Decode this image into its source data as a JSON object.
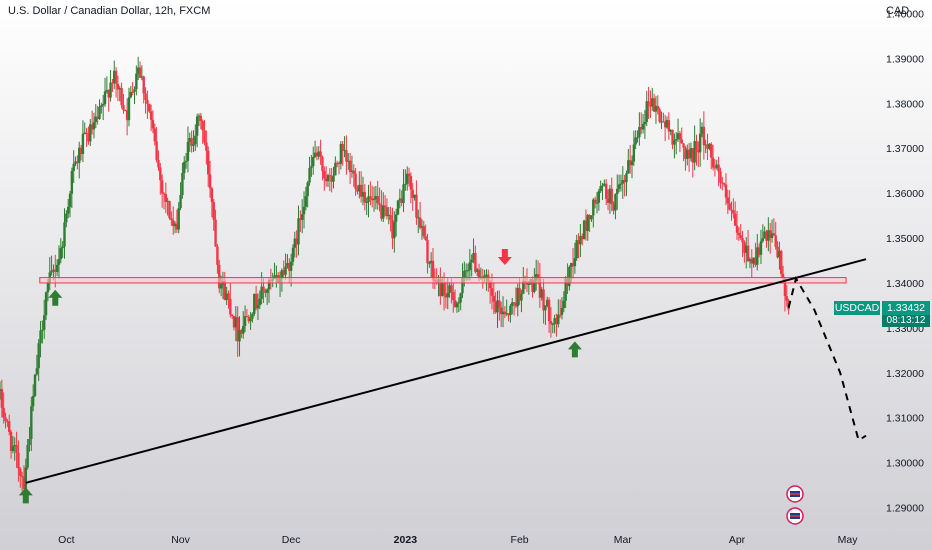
{
  "header": {
    "title": "U.S. Dollar / Canadian Dollar, 12h, FXCM",
    "currency": "CAD"
  },
  "price_tag": {
    "symbol": "USDCAD",
    "price": "1.33432",
    "countdown": "08:13:12"
  },
  "colors": {
    "up": "#2e7d32",
    "down": "#f23645",
    "zone_fill": "#f8c9cf",
    "zone_border": "#f23645",
    "tag_bg": "#089981",
    "background_top": "#ffffff",
    "background_bottom": "#cfcfd4"
  },
  "chart_data": {
    "type": "candlestick",
    "title": "U.S. Dollar / Canadian Dollar, 12h, FXCM",
    "y_axis": {
      "ticks": [
        1.29,
        1.3,
        1.31,
        1.32,
        1.33,
        1.34,
        1.35,
        1.36,
        1.37,
        1.38,
        1.39,
        1.4
      ],
      "tick_labels": [
        "1.29000",
        "1.30000",
        "1.31000",
        "1.32000",
        "1.33000",
        "1.34000",
        "1.35000",
        "1.36000",
        "1.37000",
        "1.38000",
        "1.39000",
        "1.40000"
      ],
      "range": [
        1.285,
        1.403
      ]
    },
    "x_axis": {
      "range": [
        "2022-09-13",
        "2023-05-06"
      ],
      "ticks": [
        {
          "date": "2022-10-01",
          "label": "Oct",
          "bold": false
        },
        {
          "date": "2022-11-01",
          "label": "Nov",
          "bold": false
        },
        {
          "date": "2022-12-01",
          "label": "Dec",
          "bold": false
        },
        {
          "date": "2023-01-01",
          "label": "2023",
          "bold": true
        },
        {
          "date": "2023-02-01",
          "label": "Feb",
          "bold": false
        },
        {
          "date": "2023-03-01",
          "label": "Mar",
          "bold": false
        },
        {
          "date": "2023-04-01",
          "label": "Apr",
          "bold": false
        },
        {
          "date": "2023-05-01",
          "label": "May",
          "bold": false
        }
      ]
    },
    "price_path": [
      [
        "2022-09-13",
        1.316
      ],
      [
        "2022-09-17",
        1.303
      ],
      [
        "2022-09-20",
        1.296
      ],
      [
        "2022-09-23",
        1.318
      ],
      [
        "2022-09-26",
        1.338
      ],
      [
        "2022-09-30",
        1.347
      ],
      [
        "2022-10-03",
        1.364
      ],
      [
        "2022-10-06",
        1.371
      ],
      [
        "2022-10-10",
        1.376
      ],
      [
        "2022-10-14",
        1.386
      ],
      [
        "2022-10-18",
        1.378
      ],
      [
        "2022-10-21",
        1.389
      ],
      [
        "2022-10-24",
        1.378
      ],
      [
        "2022-10-27",
        1.363
      ],
      [
        "2022-10-31",
        1.351
      ],
      [
        "2022-11-03",
        1.369
      ],
      [
        "2022-11-07",
        1.377
      ],
      [
        "2022-11-10",
        1.359
      ],
      [
        "2022-11-12",
        1.341
      ],
      [
        "2022-11-15",
        1.335
      ],
      [
        "2022-11-17",
        1.329
      ],
      [
        "2022-11-21",
        1.335
      ],
      [
        "2022-11-24",
        1.338
      ],
      [
        "2022-11-28",
        1.341
      ],
      [
        "2022-12-02",
        1.346
      ],
      [
        "2022-12-05",
        1.359
      ],
      [
        "2022-12-08",
        1.369
      ],
      [
        "2022-12-12",
        1.362
      ],
      [
        "2022-12-15",
        1.369
      ],
      [
        "2022-12-19",
        1.363
      ],
      [
        "2022-12-22",
        1.359
      ],
      [
        "2022-12-26",
        1.356
      ],
      [
        "2022-12-29",
        1.352
      ],
      [
        "2023-01-02",
        1.364
      ],
      [
        "2023-01-05",
        1.355
      ],
      [
        "2023-01-09",
        1.341
      ],
      [
        "2023-01-12",
        1.338
      ],
      [
        "2023-01-16",
        1.336
      ],
      [
        "2023-01-19",
        1.346
      ],
      [
        "2023-01-23",
        1.341
      ],
      [
        "2023-01-26",
        1.334
      ],
      [
        "2023-01-30",
        1.334
      ],
      [
        "2023-02-02",
        1.339
      ],
      [
        "2023-02-06",
        1.34
      ],
      [
        "2023-02-09",
        1.334
      ],
      [
        "2023-02-12",
        1.331
      ],
      [
        "2023-02-15",
        1.343
      ],
      [
        "2023-02-17",
        1.348
      ],
      [
        "2023-02-21",
        1.356
      ],
      [
        "2023-02-24",
        1.361
      ],
      [
        "2023-02-27",
        1.358
      ],
      [
        "2023-03-02",
        1.362
      ],
      [
        "2023-03-06",
        1.375
      ],
      [
        "2023-03-09",
        1.381
      ],
      [
        "2023-03-13",
        1.375
      ],
      [
        "2023-03-16",
        1.372
      ],
      [
        "2023-03-20",
        1.368
      ],
      [
        "2023-03-23",
        1.373
      ],
      [
        "2023-03-27",
        1.366
      ],
      [
        "2023-03-30",
        1.357
      ],
      [
        "2023-04-03",
        1.348
      ],
      [
        "2023-04-06",
        1.345
      ],
      [
        "2023-04-09",
        1.35
      ],
      [
        "2023-04-12",
        1.349
      ],
      [
        "2023-04-14",
        1.341
      ],
      [
        "2023-04-15",
        1.334
      ]
    ],
    "annotations": {
      "support_zone": {
        "low": 1.34,
        "high": 1.3412,
        "from": "2022-09-20",
        "to": "2023-04-23"
      },
      "trendline": {
        "from": [
          "2022-09-20",
          1.2955
        ],
        "to": [
          "2023-05-06",
          1.3453
        ]
      },
      "projection_path": [
        [
          "2023-04-15",
          1.3345
        ],
        [
          "2023-04-17",
          1.341
        ],
        [
          "2023-04-22",
          1.334
        ],
        [
          "2023-04-29",
          1.32
        ],
        [
          "2023-05-04",
          1.305
        ],
        [
          "2023-05-06",
          1.306
        ]
      ],
      "arrows": [
        {
          "date": "2022-09-20",
          "direction": "up",
          "price": 1.2945,
          "color": "up"
        },
        {
          "date": "2022-09-28",
          "direction": "up",
          "price": 1.3385,
          "color": "up"
        },
        {
          "date": "2023-01-28",
          "direction": "down",
          "price": 1.344,
          "color": "down"
        },
        {
          "date": "2023-02-16",
          "direction": "up",
          "price": 1.327,
          "color": "up"
        }
      ]
    },
    "last_price": 1.33432,
    "grid": false,
    "legend": "none"
  }
}
